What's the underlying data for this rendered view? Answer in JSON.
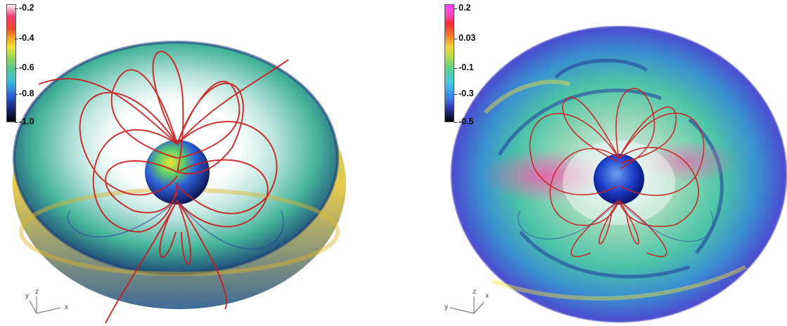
{
  "left_panel": {
    "colorbar": {
      "ticks": [
        "-0.2",
        "-0.4",
        "-0.6",
        "-0.8",
        "-1.0"
      ],
      "colors": [
        "#f5f5f5",
        "#ef4a2a",
        "#8fd35a",
        "#3bbad8",
        "#000000"
      ]
    },
    "axes": {
      "x": "x",
      "y": "y",
      "z": "z"
    }
  },
  "right_panel": {
    "colorbar": {
      "ticks": [
        "0.2",
        "0.03",
        "-0.1",
        "-0.3",
        "-0.5"
      ],
      "colors": [
        "#ff44f0",
        "#ef2d35",
        "#5bd08a",
        "#46c9df",
        "#000000"
      ]
    },
    "axes": {
      "x": "x",
      "y": "y",
      "z": "z"
    }
  },
  "field_line_color": "#c81e1e"
}
